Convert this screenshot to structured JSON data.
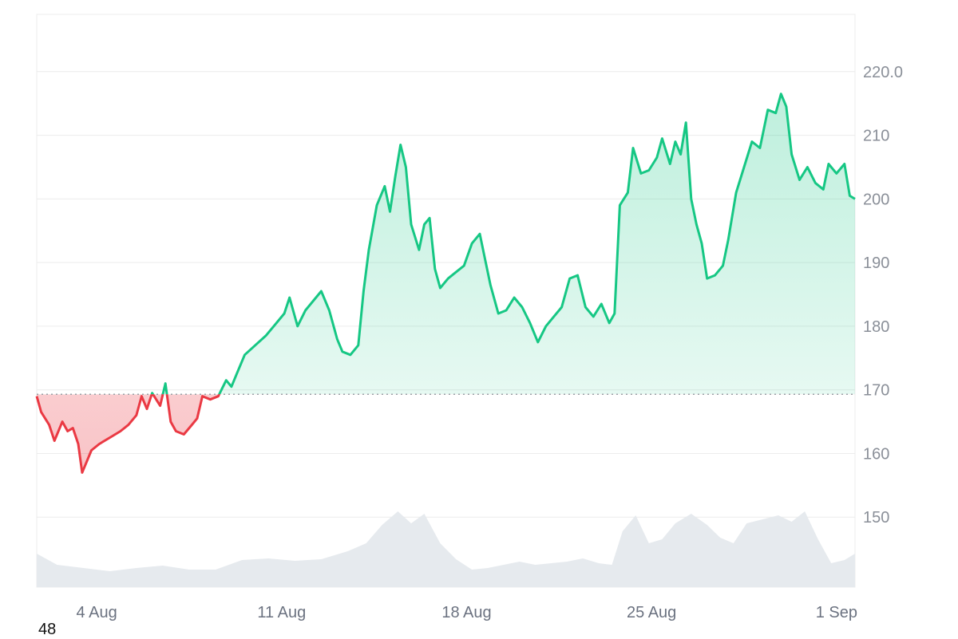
{
  "chart_data": {
    "type": "area",
    "baseline": 169.3,
    "ylim": [
      139,
      229
    ],
    "grid": true,
    "y_ticks": [
      150,
      160,
      170,
      180,
      190,
      200,
      210,
      220
    ],
    "y_tick_labels": [
      "150",
      "160",
      "170",
      "180",
      "190",
      "200",
      "210",
      "220.0"
    ],
    "x_ticks": [
      {
        "label": "4 Aug",
        "day": 4
      },
      {
        "label": "11 Aug",
        "day": 11
      },
      {
        "label": "18 Aug",
        "day": 18
      },
      {
        "label": "25 Aug",
        "day": 25
      },
      {
        "label": "1 Sep",
        "day": 32
      }
    ],
    "x_range_days": [
      1.73,
      32.7
    ],
    "series": [
      {
        "values": [
          [
            1.73,
            169.0
          ],
          [
            1.9,
            166.5
          ],
          [
            2.2,
            164.5
          ],
          [
            2.4,
            162.0
          ],
          [
            2.7,
            165.0
          ],
          [
            2.9,
            163.5
          ],
          [
            3.1,
            164.0
          ],
          [
            3.3,
            161.5
          ],
          [
            3.45,
            157.0
          ],
          [
            3.6,
            158.5
          ],
          [
            3.8,
            160.5
          ],
          [
            4.1,
            161.5
          ],
          [
            4.5,
            162.5
          ],
          [
            4.9,
            163.5
          ],
          [
            5.2,
            164.5
          ],
          [
            5.5,
            166.0
          ],
          [
            5.7,
            169.0
          ],
          [
            5.9,
            167.0
          ],
          [
            6.1,
            169.5
          ],
          [
            6.4,
            167.5
          ],
          [
            6.6,
            171.0
          ],
          [
            6.8,
            165.0
          ],
          [
            7.0,
            163.5
          ],
          [
            7.3,
            163.0
          ],
          [
            7.6,
            164.5
          ],
          [
            7.8,
            165.5
          ],
          [
            8.0,
            169.0
          ],
          [
            8.3,
            168.5
          ],
          [
            8.6,
            169.0
          ],
          [
            8.9,
            171.5
          ],
          [
            9.1,
            170.5
          ],
          [
            9.3,
            172.5
          ],
          [
            9.6,
            175.5
          ],
          [
            10.0,
            177.0
          ],
          [
            10.4,
            178.5
          ],
          [
            10.7,
            180.0
          ],
          [
            11.1,
            182.0
          ],
          [
            11.3,
            184.5
          ],
          [
            11.6,
            180.0
          ],
          [
            11.9,
            182.5
          ],
          [
            12.2,
            184.0
          ],
          [
            12.5,
            185.5
          ],
          [
            12.8,
            182.5
          ],
          [
            13.1,
            178.0
          ],
          [
            13.3,
            176.0
          ],
          [
            13.6,
            175.5
          ],
          [
            13.9,
            177.0
          ],
          [
            14.1,
            185.5
          ],
          [
            14.3,
            192.0
          ],
          [
            14.6,
            199.0
          ],
          [
            14.9,
            202.0
          ],
          [
            15.1,
            198.0
          ],
          [
            15.3,
            203.5
          ],
          [
            15.5,
            208.5
          ],
          [
            15.7,
            205.0
          ],
          [
            15.9,
            196.0
          ],
          [
            16.2,
            192.0
          ],
          [
            16.4,
            196.0
          ],
          [
            16.6,
            197.0
          ],
          [
            16.8,
            189.0
          ],
          [
            17.0,
            186.0
          ],
          [
            17.3,
            187.5
          ],
          [
            17.6,
            188.5
          ],
          [
            17.9,
            189.5
          ],
          [
            18.2,
            193.0
          ],
          [
            18.5,
            194.5
          ],
          [
            18.7,
            190.5
          ],
          [
            18.9,
            186.5
          ],
          [
            19.2,
            182.0
          ],
          [
            19.5,
            182.5
          ],
          [
            19.8,
            184.5
          ],
          [
            20.1,
            183.0
          ],
          [
            20.4,
            180.5
          ],
          [
            20.7,
            177.5
          ],
          [
            21.0,
            180.0
          ],
          [
            21.3,
            181.5
          ],
          [
            21.6,
            183.0
          ],
          [
            21.9,
            187.5
          ],
          [
            22.2,
            188.0
          ],
          [
            22.5,
            183.0
          ],
          [
            22.8,
            181.5
          ],
          [
            23.1,
            183.5
          ],
          [
            23.4,
            180.5
          ],
          [
            23.6,
            182.0
          ],
          [
            23.8,
            199.0
          ],
          [
            24.1,
            201.0
          ],
          [
            24.3,
            208.0
          ],
          [
            24.6,
            204.0
          ],
          [
            24.9,
            204.5
          ],
          [
            25.2,
            206.5
          ],
          [
            25.4,
            209.5
          ],
          [
            25.7,
            205.5
          ],
          [
            25.9,
            209.0
          ],
          [
            26.1,
            207.0
          ],
          [
            26.3,
            212.0
          ],
          [
            26.5,
            200.0
          ],
          [
            26.7,
            196.0
          ],
          [
            26.9,
            193.0
          ],
          [
            27.1,
            187.5
          ],
          [
            27.4,
            188.0
          ],
          [
            27.7,
            189.5
          ],
          [
            27.9,
            193.5
          ],
          [
            28.2,
            201.0
          ],
          [
            28.5,
            205.0
          ],
          [
            28.8,
            209.0
          ],
          [
            29.1,
            208.0
          ],
          [
            29.4,
            214.0
          ],
          [
            29.7,
            213.5
          ],
          [
            29.9,
            216.5
          ],
          [
            30.1,
            214.5
          ],
          [
            30.3,
            207.0
          ],
          [
            30.6,
            203.0
          ],
          [
            30.9,
            205.0
          ],
          [
            31.2,
            202.5
          ],
          [
            31.5,
            201.5
          ],
          [
            31.7,
            205.5
          ],
          [
            32.0,
            204.0
          ],
          [
            32.3,
            205.5
          ],
          [
            32.5,
            200.5
          ],
          [
            32.7,
            200.0
          ]
        ]
      }
    ],
    "volume": [
      [
        1.73,
        0.42
      ],
      [
        2.5,
        0.28
      ],
      [
        3.5,
        0.24
      ],
      [
        4.5,
        0.2
      ],
      [
        5.5,
        0.24
      ],
      [
        6.5,
        0.27
      ],
      [
        7.5,
        0.22
      ],
      [
        8.5,
        0.22
      ],
      [
        9.5,
        0.34
      ],
      [
        10.5,
        0.36
      ],
      [
        11.5,
        0.33
      ],
      [
        12.5,
        0.35
      ],
      [
        13.5,
        0.45
      ],
      [
        14.2,
        0.55
      ],
      [
        14.8,
        0.78
      ],
      [
        15.4,
        0.95
      ],
      [
        15.9,
        0.8
      ],
      [
        16.4,
        0.92
      ],
      [
        17.0,
        0.55
      ],
      [
        17.6,
        0.35
      ],
      [
        18.2,
        0.22
      ],
      [
        18.8,
        0.24
      ],
      [
        19.4,
        0.28
      ],
      [
        20.0,
        0.32
      ],
      [
        20.6,
        0.28
      ],
      [
        21.2,
        0.3
      ],
      [
        21.8,
        0.32
      ],
      [
        22.4,
        0.36
      ],
      [
        23.0,
        0.3
      ],
      [
        23.5,
        0.28
      ],
      [
        23.9,
        0.7
      ],
      [
        24.4,
        0.9
      ],
      [
        24.9,
        0.55
      ],
      [
        25.4,
        0.6
      ],
      [
        25.9,
        0.8
      ],
      [
        26.5,
        0.92
      ],
      [
        27.1,
        0.78
      ],
      [
        27.6,
        0.62
      ],
      [
        28.1,
        0.55
      ],
      [
        28.6,
        0.8
      ],
      [
        29.2,
        0.85
      ],
      [
        29.8,
        0.9
      ],
      [
        30.3,
        0.82
      ],
      [
        30.8,
        0.95
      ],
      [
        31.3,
        0.6
      ],
      [
        31.8,
        0.3
      ],
      [
        32.3,
        0.34
      ],
      [
        32.7,
        0.42
      ]
    ],
    "colors": {
      "up_line": "#16c784",
      "down_line": "#ea3943",
      "up_fill": "#16c784",
      "down_fill": "#ea3943",
      "volume": "#e6eaee",
      "grid": "#ececec",
      "baseline": "#9aa0a6"
    }
  },
  "footer": {
    "label": "48"
  }
}
